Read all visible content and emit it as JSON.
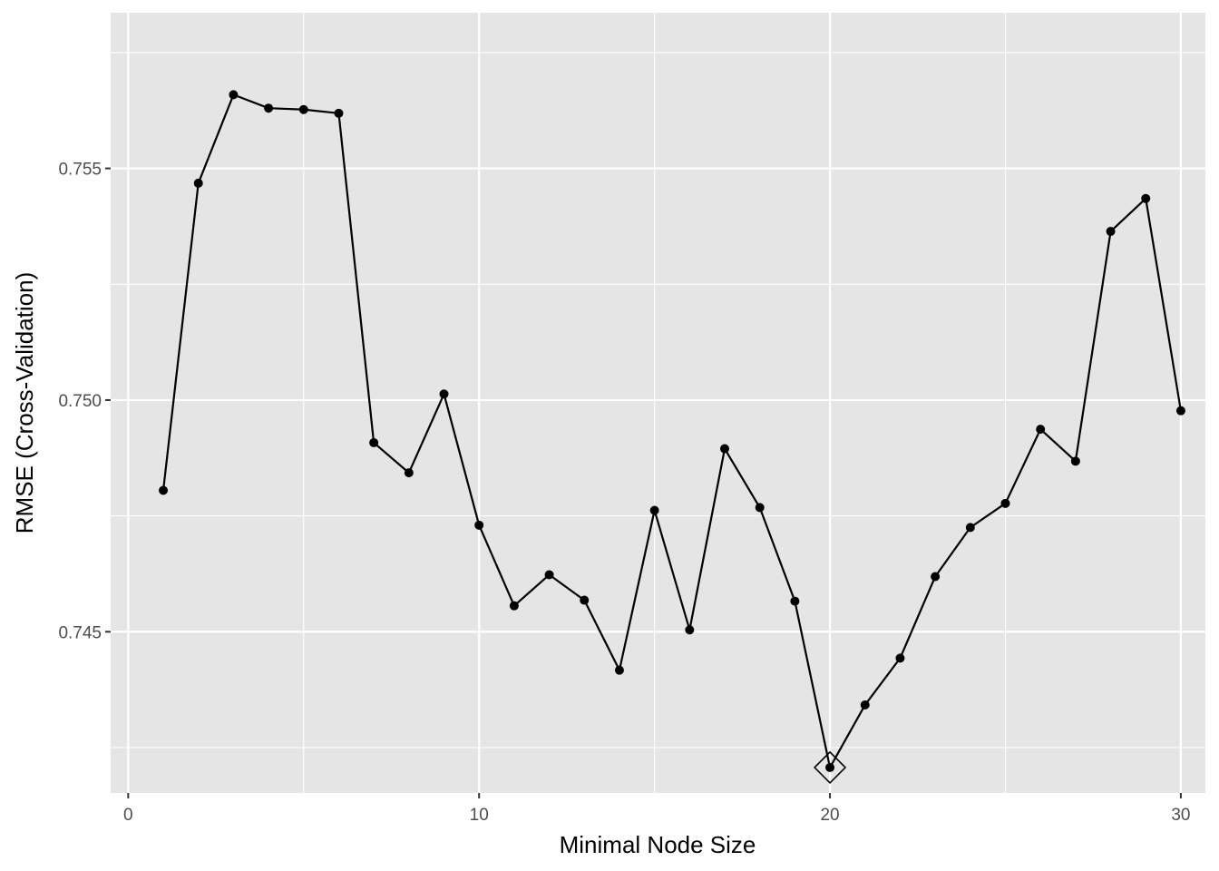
{
  "chart_data": {
    "type": "line",
    "title": "",
    "xlabel": "Minimal Node Size",
    "ylabel": "RMSE (Cross-Validation)",
    "xlim": [
      -0.5,
      30.7
    ],
    "ylim": [
      0.74152,
      0.75836
    ],
    "x_ticks": [
      0,
      10,
      20,
      30
    ],
    "x_tick_labels": [
      "0",
      "10",
      "20",
      "30"
    ],
    "y_ticks": [
      0.745,
      0.75,
      0.755
    ],
    "y_tick_labels": [
      "0.745",
      "0.750",
      "0.755"
    ],
    "grid": true,
    "legend": "none",
    "series": [
      {
        "x": [
          1,
          2,
          3,
          4,
          5,
          6,
          7,
          8,
          9,
          10,
          11,
          12,
          13,
          14,
          15,
          16,
          17,
          18,
          19,
          20,
          21,
          22,
          23,
          24,
          25,
          26,
          27,
          28,
          29,
          30
        ],
        "values": [
          0.74805,
          0.75468,
          0.75659,
          0.7563,
          0.75627,
          0.75619,
          0.74908,
          0.74843,
          0.75013,
          0.7473,
          0.74556,
          0.74623,
          0.74568,
          0.74417,
          0.74762,
          0.74504,
          0.74895,
          0.74768,
          0.74566,
          0.74207,
          0.74342,
          0.74443,
          0.74619,
          0.74725,
          0.74777,
          0.74937,
          0.74868,
          0.75364,
          0.75435,
          0.74977
        ]
      }
    ],
    "highlight": {
      "x": 20,
      "value": 0.74207,
      "marker": "diamond"
    },
    "colors": {
      "panel": "#e5e5e5",
      "grid_major": "#ffffff",
      "line": "#000000",
      "point": "#000000"
    }
  }
}
